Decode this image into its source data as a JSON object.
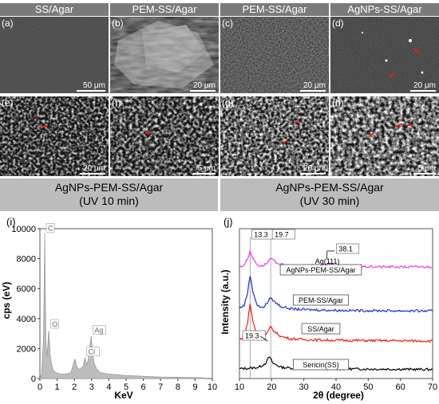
{
  "titles": [
    "SS/Agar",
    "PEM-SS/Agar",
    "PEM-SS/Agar",
    "AgNPs-SS/Agar"
  ],
  "panels_top": [
    {
      "label": "(a)",
      "scale": "50 μm"
    },
    {
      "label": "(b)",
      "scale": "20 μm"
    },
    {
      "label": "(c)",
      "scale": "20 μm"
    },
    {
      "label": "(d)",
      "scale": "20 μm"
    }
  ],
  "panels_bottom": [
    {
      "label": "(e)",
      "scale": "20 μm"
    },
    {
      "label": "(f)",
      "scale": "5 μm"
    },
    {
      "label": "(g)",
      "scale": "20 μm"
    },
    {
      "label": "(h)",
      "scale": "5 μm"
    }
  ],
  "uv_left": {
    "line1": "AgNPs-PEM-SS/Agar",
    "line2": "(UV 10 min)"
  },
  "uv_right": {
    "line1": "AgNPs-PEM-SS/Agar",
    "line2": "(UV 30 min)"
  },
  "chart_data": [
    {
      "panel_label": "(i)",
      "type": "area",
      "xlabel": "KeV",
      "ylabel": "cps (eV)",
      "xlim": [
        0,
        10
      ],
      "ylim": [
        0,
        10000
      ],
      "xticks": [
        0,
        1,
        2,
        3,
        4,
        5,
        6,
        7,
        8,
        9,
        10
      ],
      "yticks": [
        0,
        2000,
        4000,
        6000,
        8000,
        10000
      ],
      "series": [
        {
          "x": [
            0,
            0.1,
            0.2,
            0.25,
            0.28,
            0.3,
            0.35,
            0.4,
            0.45,
            0.5,
            0.52,
            0.6,
            0.7,
            0.8,
            1.0,
            1.2,
            1.5,
            1.8,
            2.0,
            2.05,
            2.1,
            2.2,
            2.3,
            2.5,
            2.62,
            2.7,
            2.8,
            2.9,
            2.98,
            3.05,
            3.15,
            3.3,
            3.5,
            4.0,
            5.0,
            7.0,
            9.5
          ],
          "y": [
            0,
            300,
            2500,
            6000,
            9700,
            7000,
            2500,
            1500,
            2000,
            3000,
            3200,
            1500,
            800,
            500,
            350,
            300,
            300,
            400,
            1200,
            1300,
            900,
            700,
            600,
            800,
            1400,
            900,
            1200,
            2200,
            2800,
            1800,
            1000,
            600,
            400,
            300,
            200,
            100,
            50
          ]
        }
      ],
      "annotations": [
        {
          "text": "C",
          "x": 0.28,
          "y": 9700
        },
        {
          "text": "O",
          "x": 0.52,
          "y": 3300
        },
        {
          "text": "Ag",
          "x": 2.98,
          "y": 2900
        },
        {
          "text": "Cl",
          "x": 2.62,
          "y": 1450
        }
      ]
    },
    {
      "panel_label": "(j)",
      "type": "line",
      "xlabel": "2θ (degree)",
      "ylabel": "Intensity (a.u.)",
      "xlim": [
        10,
        70
      ],
      "xticks": [
        10,
        20,
        30,
        40,
        50,
        60,
        70
      ],
      "colors": {
        "sericin": "#000000",
        "ss": "#e8201c",
        "pem": "#1f2fd0",
        "agnps": "#e83fe8"
      },
      "series": [
        {
          "name": "Sericin(SS)",
          "x": [
            10,
            14,
            16,
            18,
            19.3,
            20.5,
            23,
            26,
            30,
            40,
            50,
            60,
            70
          ],
          "y": [
            1150,
            1200,
            1250,
            1500,
            1950,
            1500,
            1250,
            1200,
            1180,
            1150,
            1130,
            1120,
            1100
          ]
        },
        {
          "name": "SS/Agar",
          "x": [
            10,
            11.5,
            12.5,
            13.3,
            14.2,
            15.5,
            17,
            18.5,
            19.7,
            21,
            23,
            26,
            30,
            40,
            50,
            60,
            70
          ],
          "y": [
            3100,
            3300,
            4200,
            5500,
            4300,
            3300,
            3200,
            3500,
            3950,
            3600,
            3300,
            3150,
            3100,
            3050,
            3030,
            3020,
            3000
          ]
        },
        {
          "name": "PEM-SS/Agar",
          "x": [
            10,
            11.5,
            12.5,
            13.3,
            14.2,
            15.5,
            17,
            18.5,
            19.7,
            21,
            23,
            26,
            30,
            40,
            50,
            60,
            70
          ],
          "y": [
            5200,
            5400,
            6200,
            7400,
            6300,
            5400,
            5200,
            5500,
            5900,
            5600,
            5300,
            5150,
            5100,
            5050,
            5030,
            5020,
            5000
          ]
        },
        {
          "name": "AgNPs-PEM-SS/Agar",
          "x": [
            10,
            11.5,
            12.5,
            13.3,
            14.2,
            15.5,
            17,
            18.5,
            19.7,
            21,
            23,
            26,
            30,
            33,
            38.1,
            40,
            45,
            50,
            60,
            70
          ],
          "y": [
            7900,
            8100,
            8500,
            9000,
            8500,
            8100,
            8000,
            8200,
            8500,
            8300,
            8100,
            8000,
            7980,
            8050,
            8200,
            8000,
            7970,
            7960,
            7950,
            7950
          ]
        }
      ],
      "annotations": [
        {
          "text": "13.3",
          "x": 13.3
        },
        {
          "text": "19.7",
          "x": 19.7
        },
        {
          "text": "Ag(111)"
        },
        {
          "text": "38.1",
          "x": 38.1
        },
        {
          "text": "19.3",
          "x": 19.3
        }
      ]
    }
  ]
}
